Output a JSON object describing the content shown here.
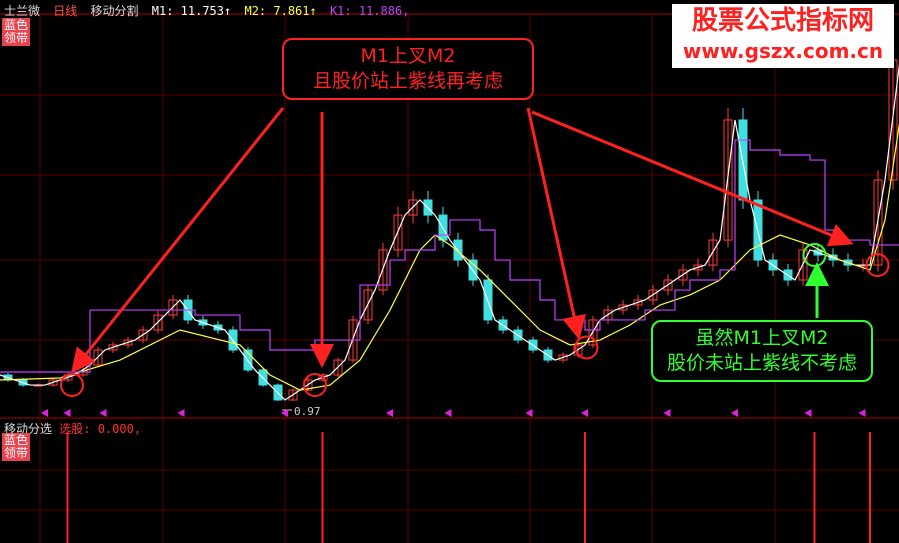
{
  "header": {
    "stock": "士兰微",
    "period": "日线",
    "indicator": "移动分割",
    "m1": "M1: 11.753↑",
    "m2": "M2: 7.861↑",
    "k1": "K1: 11.886,"
  },
  "tag": {
    "text1": "蓝色",
    "text2": "领带"
  },
  "sub_panel": {
    "name": "移动分选",
    "value": "选股: 0.000,"
  },
  "watermark": {
    "line1": "股票公式指标网",
    "line2": "www.gszx.com.cn"
  },
  "annotations": {
    "top_box": {
      "line1": "M1上叉M2",
      "line2": "且股价站上紫线再考虑"
    },
    "green_box": {
      "line1": "虽然M1上叉M2",
      "line2": "股价未站上紫线不考虑"
    }
  },
  "colors": {
    "up": "#ff3c3c",
    "down": "#40e0e0",
    "m1": "#ffffff",
    "m2": "#ffff40",
    "k1": "#c040ff",
    "grid": "#5a0000",
    "annotation_red": "#ff2020",
    "annotation_green": "#30ff30"
  },
  "chart_data": {
    "type": "candlestick",
    "low_label": "0.97",
    "close": [
      3.07,
      2.75,
      2.43,
      2.43,
      2.75,
      3.07,
      3.7,
      4.66,
      4.98,
      5.29,
      5.93,
      6.88,
      7.84,
      6.57,
      6.25,
      5.93,
      4.66,
      3.39,
      2.43,
      1.48,
      2.11,
      2.75,
      3.07,
      4.02,
      6.57,
      8.47,
      11.02,
      13.24,
      14.2,
      13.24,
      11.65,
      10.38,
      9.11,
      6.57,
      5.93,
      5.29,
      4.66,
      4.02,
      4.34,
      4.98,
      6.57,
      7.2,
      7.52,
      7.84,
      8.47,
      9.11,
      9.75,
      10.06,
      11.65,
      19.29,
      14.2,
      10.38,
      9.75,
      9.11,
      11.02,
      10.7,
      10.38,
      10.06,
      10.06,
      15.47,
      23.1
    ],
    "m2": {
      "index": [
        0,
        4,
        8,
        12,
        16,
        18,
        20,
        22,
        24,
        26,
        28,
        29,
        30,
        32,
        34,
        36,
        38,
        40,
        42,
        44,
        46,
        48,
        50,
        52,
        54,
        56,
        58,
        59,
        60
      ],
      "values": [
        2.75,
        2.88,
        4.02,
        5.93,
        4.98,
        3.07,
        2.11,
        2.43,
        4.02,
        7.2,
        11.02,
        11.97,
        11.34,
        9.75,
        7.84,
        5.93,
        4.98,
        5.29,
        6.25,
        7.52,
        8.16,
        9.11,
        11.02,
        11.97,
        11.34,
        10.38,
        9.75,
        12.93,
        19.29
      ]
    },
    "k1": {
      "index": [
        0,
        6,
        13,
        16,
        18,
        21,
        24,
        26,
        27,
        29,
        30,
        32,
        33,
        34,
        36,
        37,
        39,
        40,
        43,
        45,
        46,
        48,
        49,
        50,
        52,
        54,
        55,
        56,
        58,
        60
      ],
      "values": [
        3.26,
        7.2,
        6.88,
        5.93,
        4.66,
        5.29,
        8.79,
        10.38,
        11.02,
        11.97,
        12.93,
        12.29,
        10.38,
        9.11,
        7.84,
        6.57,
        5.93,
        6.57,
        7.2,
        8.47,
        9.11,
        9.75,
        18.01,
        17.38,
        17.06,
        16.74,
        12.29,
        11.65,
        11.34,
        11.34
      ]
    },
    "signals": [
      4.5,
      21.5,
      39,
      54.3,
      58
    ],
    "markers": [
      3,
      4.5,
      6.9,
      12.1,
      19,
      26,
      29.9,
      35.3,
      39,
      44.5,
      49,
      53.9,
      57.5
    ],
    "cross_points": [
      {
        "i": 4.8,
        "v": 2.43,
        "type": "red"
      },
      {
        "i": 21,
        "v": 2.43,
        "type": "red"
      },
      {
        "i": 39.1,
        "v": 4.82,
        "type": "red"
      },
      {
        "i": 54.3,
        "v": 10.7,
        "type": "green"
      },
      {
        "i": 58.5,
        "v": 10.06,
        "type": "red"
      }
    ]
  }
}
